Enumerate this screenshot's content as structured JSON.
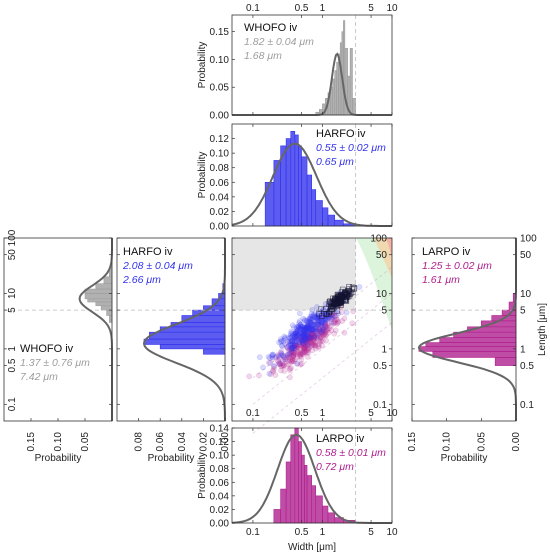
{
  "figure": {
    "width_label": "Width [μm]",
    "length_label": "Length [μm]",
    "probability_label": "Probability"
  },
  "colors": {
    "gray": "#9e9e9e",
    "blue": "#3333ee",
    "magenta": "#b0208f",
    "dashed": "#bbbbbb",
    "fit_curve": "#666666",
    "forbidden_region": "#e6e6e6"
  },
  "chart_data": [
    {
      "id": "top-whofo",
      "type": "histogram",
      "name": "WHOFO  iv",
      "stats": [
        "1.82 ± 0.04 μm",
        "1.68 μm"
      ],
      "color": "#9e9e9e",
      "x_scale": "log",
      "xlim": [
        0.05,
        10
      ],
      "ylim": [
        0,
        0.18
      ],
      "x_ticks": [
        "0.1",
        "0.5",
        "1",
        "5",
        "10"
      ],
      "y_ticks": [
        "0.00",
        "0.05",
        "0.10",
        "0.15"
      ],
      "ylabel": "Probability",
      "dashed_x": 3,
      "bins_x": [
        0.8,
        0.9,
        1.0,
        1.1,
        1.2,
        1.3,
        1.4,
        1.5,
        1.6,
        1.7,
        1.8,
        1.9,
        2.0,
        2.1,
        2.3,
        2.5,
        2.7,
        3.0
      ],
      "bins_y": [
        0.005,
        0.01,
        0.02,
        0.03,
        0.04,
        0.05,
        0.065,
        0.08,
        0.095,
        0.11,
        0.13,
        0.15,
        0.17,
        0.12,
        0.07,
        0.12,
        0.03
      ],
      "fit_mu": 1.62,
      "fit_sigma": 0.17,
      "fit_peak": 0.11
    },
    {
      "id": "mid-harfo-width",
      "type": "histogram",
      "name": "HARFO  iv",
      "stats": [
        "0.55 ± 0.02 μm",
        "0.65 μm"
      ],
      "color": "#3333ee",
      "x_scale": "log",
      "xlim": [
        0.05,
        10
      ],
      "ylim": [
        0,
        0.14
      ],
      "x_ticks": [
        "0.1",
        "0.5",
        "1",
        "5",
        "10"
      ],
      "y_ticks": [
        "0.00",
        "0.02",
        "0.04",
        "0.06",
        "0.08",
        "0.10",
        "0.12"
      ],
      "ylabel": "Probability",
      "dashed_x": 3,
      "bins_x": [
        0.15,
        0.2,
        0.25,
        0.3,
        0.35,
        0.4,
        0.45,
        0.5,
        0.6,
        0.7,
        0.8,
        1.0,
        1.2,
        1.5,
        2.0,
        3.0
      ],
      "bins_y": [
        0.06,
        0.09,
        0.11,
        0.12,
        0.13,
        0.125,
        0.11,
        0.095,
        0.07,
        0.05,
        0.035,
        0.025,
        0.015,
        0.008,
        0.003
      ],
      "fit_mu": 0.4,
      "fit_sigma": 0.72,
      "fit_peak": 0.113
    },
    {
      "id": "bottom-larpo-width",
      "type": "histogram",
      "name": "LARPO  iv",
      "stats": [
        "0.58 ± 0.01 μm",
        "0.72 μm"
      ],
      "color": "#b0208f",
      "x_scale": "log",
      "xlim": [
        0.05,
        10
      ],
      "ylim": [
        0,
        0.14
      ],
      "x_ticks": [
        "0.1",
        "0.5",
        "1",
        "5",
        "10"
      ],
      "y_ticks": [
        "0.00",
        "0.02",
        "0.04",
        "0.06",
        "0.08",
        "0.10",
        "0.12",
        "0.14"
      ],
      "xlabel": "Width [μm]",
      "ylabel": "Probability",
      "dashed_x": 3,
      "bins_x": [
        0.2,
        0.25,
        0.3,
        0.35,
        0.4,
        0.45,
        0.5,
        0.55,
        0.6,
        0.7,
        0.8,
        1.0,
        1.2,
        1.5,
        2.0,
        3.0
      ],
      "bins_y": [
        0.02,
        0.05,
        0.09,
        0.13,
        0.14,
        0.12,
        0.1,
        0.085,
        0.07,
        0.055,
        0.04,
        0.025,
        0.015,
        0.008,
        0.004
      ],
      "fit_mu": 0.42,
      "fit_sigma": 0.62,
      "fit_peak": 0.13
    },
    {
      "id": "left-whofo-length",
      "type": "histogram",
      "orientation": "horizontal",
      "name": "WHOFO  iv",
      "stats": [
        "1.37 ± 0.76 μm",
        "7.42 μm"
      ],
      "color": "#9e9e9e",
      "y_scale": "log",
      "ylim": [
        0.05,
        100
      ],
      "xlim": [
        0.2,
        0
      ],
      "x_ticks": [
        "0.15",
        "0.10",
        "0.05"
      ],
      "y_ticks": [
        "0.1",
        "0.5",
        "1",
        "5",
        "10",
        "50",
        "100"
      ],
      "xlabel": "Probability",
      "dashed_y": 5,
      "bins_y": [
        3,
        4,
        5,
        6,
        7,
        8,
        10,
        12,
        15,
        20,
        30
      ],
      "bins_x": [
        0.005,
        0.01,
        0.02,
        0.03,
        0.045,
        0.05,
        0.05,
        0.03,
        0.015,
        0.005
      ],
      "fit_mu": 8,
      "fit_sigma": 0.55,
      "fit_peak": 0.06
    },
    {
      "id": "left-harfo-length",
      "type": "histogram",
      "orientation": "horizontal",
      "name": "HARFO  iv",
      "stats": [
        "2.08 ± 0.04 μm",
        "2.66 μm"
      ],
      "color": "#3333ee",
      "y_scale": "log",
      "ylim": [
        0.05,
        100
      ],
      "xlim": [
        0.1,
        0
      ],
      "x_ticks": [
        "0.08",
        "0.06",
        "0.04",
        "0.02",
        "0.00"
      ],
      "y_ticks": [
        "0.1",
        "0.5",
        "1",
        "5",
        "10",
        "50",
        "100"
      ],
      "xlabel": "Probability",
      "dashed_y": 5,
      "bins_y": [
        0.8,
        1.0,
        1.2,
        1.5,
        2.0,
        2.5,
        3.0,
        4.0,
        5.0,
        6.0,
        8.0,
        10,
        15
      ],
      "bins_x": [
        0.02,
        0.06,
        0.075,
        0.07,
        0.06,
        0.05,
        0.04,
        0.03,
        0.02,
        0.012,
        0.006,
        0.002
      ],
      "fit_mu": 1.25,
      "fit_sigma": 0.8,
      "fit_peak": 0.075
    },
    {
      "id": "right-larpo-length",
      "type": "histogram",
      "orientation": "horizontal",
      "name": "LARPO  iv",
      "stats": [
        "1.25 ± 0.02 μm",
        "1.61 μm"
      ],
      "color": "#b0208f",
      "y_scale": "log",
      "ylim": [
        0.05,
        100
      ],
      "xlim": [
        0.15,
        0
      ],
      "x_ticks": [
        "0.15",
        "0.10",
        "0.05",
        "0.00"
      ],
      "y_ticks": [
        "0.1",
        "0.5",
        "1",
        "5",
        "10",
        "50",
        "100"
      ],
      "xlabel": "Probability",
      "ylabel": "Length [μm]",
      "dashed_y": 5,
      "bins_y": [
        0.5,
        0.7,
        0.9,
        1.1,
        1.3,
        1.6,
        2.0,
        2.5,
        3.2,
        4.0,
        5.0,
        7.0,
        10
      ],
      "bins_x": [
        0.03,
        0.12,
        0.14,
        0.13,
        0.11,
        0.09,
        0.07,
        0.05,
        0.035,
        0.02,
        0.01,
        0.004
      ],
      "fit_mu": 1.05,
      "fit_sigma": 0.6,
      "fit_peak": 0.14
    },
    {
      "id": "center-scatter",
      "type": "scatter",
      "x_scale": "log",
      "y_scale": "log",
      "xlim": [
        0.05,
        10
      ],
      "ylim": [
        0.05,
        100
      ],
      "x_ticks": [
        "0.1",
        "0.5",
        "1",
        "5",
        "10"
      ],
      "y_ticks": [
        "0.1",
        "0.5",
        "1",
        "5",
        "10",
        "50",
        "100"
      ],
      "dashed_x": 3,
      "dashed_y": 5,
      "series": [
        {
          "color": "#b0208f",
          "mean_x": 0.6,
          "mean_y": 1.3,
          "sx": 0.55,
          "sy": 0.5,
          "slope": 0.9,
          "count": 320
        },
        {
          "color": "#3333ee",
          "mean_x": 0.6,
          "mean_y": 2.2,
          "sx": 0.55,
          "sy": 0.5,
          "slope": 0.9,
          "count": 320
        },
        {
          "color": "#222244",
          "mean_x": 1.7,
          "mean_y": 7.5,
          "sx": 0.22,
          "sy": 0.25,
          "slope": 0.9,
          "count": 140
        }
      ]
    }
  ]
}
